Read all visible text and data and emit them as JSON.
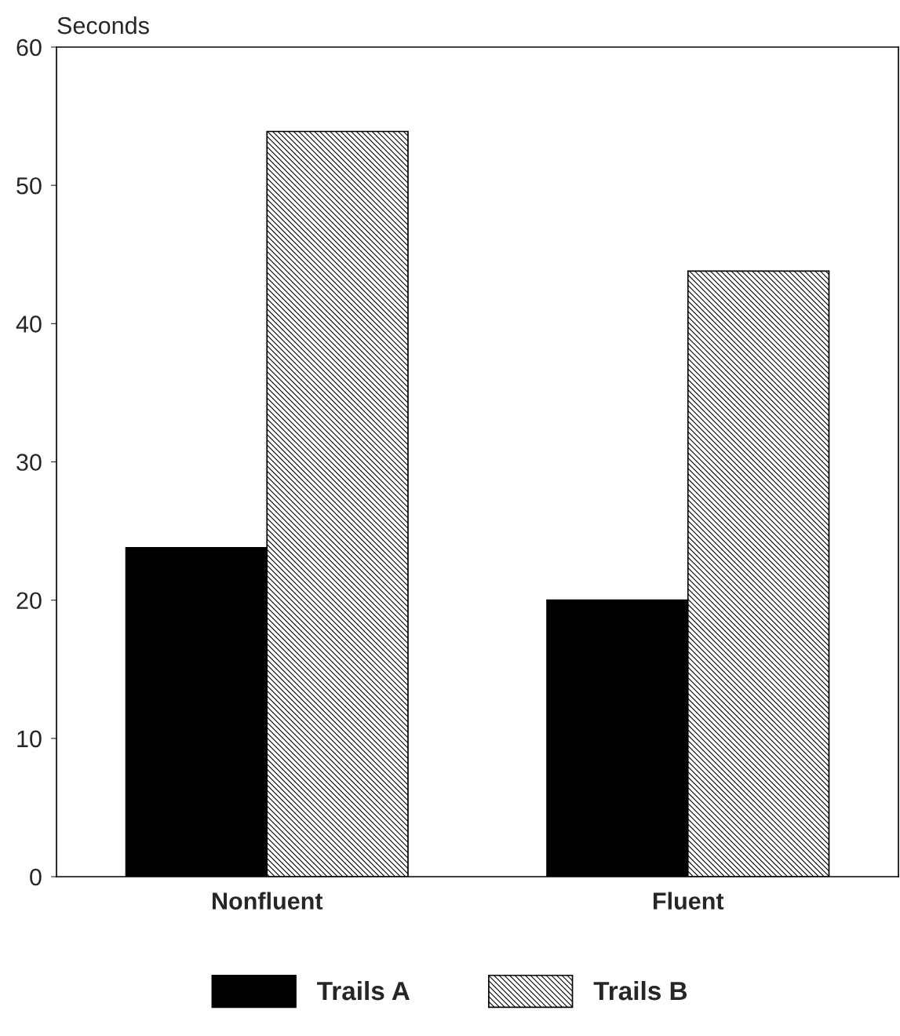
{
  "chart_data": {
    "type": "bar",
    "ylabel": "Seconds",
    "categories": [
      "Nonfluent",
      "Fluent"
    ],
    "series": [
      {
        "name": "Trails A",
        "color": "#000000",
        "values": [
          23.8,
          20.0
        ]
      },
      {
        "name": "Trails B",
        "color": "#000000",
        "values": [
          53.9,
          43.8
        ]
      }
    ],
    "ylim": [
      0,
      60
    ],
    "yticks": [
      0,
      10,
      20,
      30,
      40,
      50,
      60
    ],
    "grid": false,
    "legend": "bottom"
  }
}
